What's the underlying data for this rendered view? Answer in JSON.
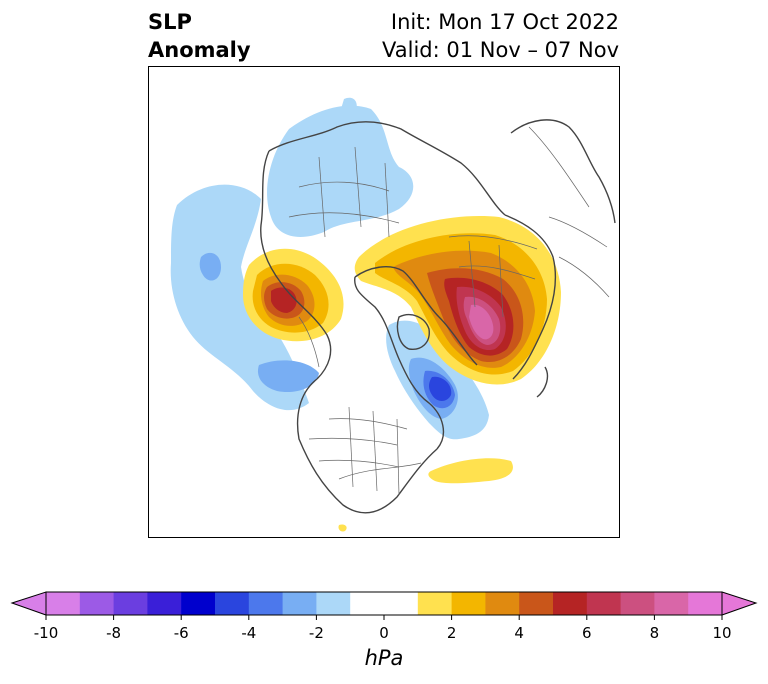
{
  "header": {
    "title_line1": "SLP",
    "title_line2": "Anomaly",
    "init_line": "Init: Mon 17 Oct 2022",
    "valid_line": "Valid: 01 Nov – 07 Nov"
  },
  "map": {
    "projection": "polar stereographic (North Pole)",
    "variable": "SLP Anomaly"
  },
  "colorbar": {
    "unit": "hPa",
    "extend": "both",
    "bins": [
      {
        "lo": -10,
        "hi": -9,
        "color": "#d87fe8"
      },
      {
        "lo": -9,
        "hi": -8,
        "color": "#9c5ae6"
      },
      {
        "lo": -8,
        "hi": -7,
        "color": "#6b3ee0"
      },
      {
        "lo": -7,
        "hi": -6,
        "color": "#3a1fd8"
      },
      {
        "lo": -6,
        "hi": -5,
        "color": "#0000cd"
      },
      {
        "lo": -5,
        "hi": -4,
        "color": "#2a45de"
      },
      {
        "lo": -4,
        "hi": -3,
        "color": "#4c78ec"
      },
      {
        "lo": -3,
        "hi": -2,
        "color": "#78aef3"
      },
      {
        "lo": -2,
        "hi": -1,
        "color": "#acd8f8"
      },
      {
        "lo": -1,
        "hi": 1,
        "color": "#ffffff"
      },
      {
        "lo": 1,
        "hi": 2,
        "color": "#ffe14f"
      },
      {
        "lo": 2,
        "hi": 3,
        "color": "#f3b600"
      },
      {
        "lo": 3,
        "hi": 4,
        "color": "#e08a10"
      },
      {
        "lo": 4,
        "hi": 5,
        "color": "#c9561a"
      },
      {
        "lo": 5,
        "hi": 6,
        "color": "#b52424"
      },
      {
        "lo": 6,
        "hi": 7,
        "color": "#c03550"
      },
      {
        "lo": 7,
        "hi": 8,
        "color": "#cc5080"
      },
      {
        "lo": 8,
        "hi": 9,
        "color": "#d966a8"
      },
      {
        "lo": 9,
        "hi": 10,
        "color": "#e577d8"
      }
    ],
    "under_color": "#d87fe8",
    "over_color": "#e577d8",
    "ticks": [
      "-10",
      "-8",
      "-6",
      "-4",
      "-2",
      "0",
      "2",
      "4",
      "6",
      "8",
      "10"
    ]
  }
}
